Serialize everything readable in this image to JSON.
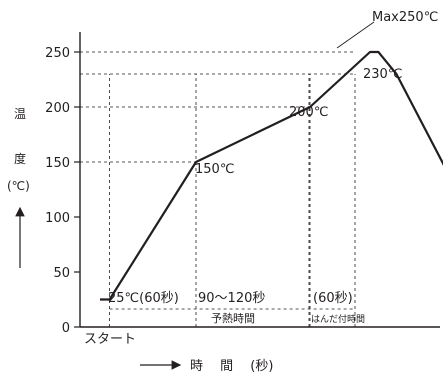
{
  "chart_data": {
    "type": "line",
    "ylabel": [
      "温",
      "度",
      "(℃)"
    ],
    "xlabel": "時　 間 　(秒)",
    "x_origin_label": "スタート",
    "ylim": [
      0,
      250
    ],
    "yticks": [
      0,
      50,
      100,
      150,
      200,
      250
    ],
    "grid": false,
    "series": [
      {
        "x": [
          0,
          8,
          80,
          175,
          225,
          232,
          247,
          290
        ],
        "y": [
          25,
          25,
          150,
          200,
          250,
          250,
          230,
          140
        ]
      }
    ],
    "reference_lines": [
      250,
      230
    ],
    "point_labels": {
      "max": "Max250℃",
      "p230": "230℃",
      "p200": "200℃",
      "p150": "150℃"
    },
    "stages": [
      {
        "top": "25℃(60秒)",
        "bottom": ""
      },
      {
        "top": "90〜120秒",
        "bottom": "予熱時間"
      },
      {
        "top": "",
        "bottom": ""
      },
      {
        "top": "(60秒)",
        "bottom": "はんだ付時間"
      }
    ]
  }
}
